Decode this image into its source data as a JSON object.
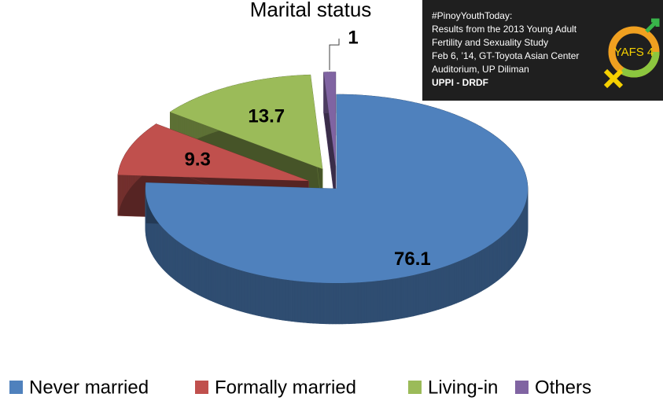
{
  "chart_data": {
    "type": "pie3d",
    "title": "Marital status",
    "categories": [
      "Never married",
      "Formally married",
      "Living-in",
      "Others"
    ],
    "values": [
      76.1,
      9.3,
      13.7,
      1.0
    ],
    "colors": [
      "#4f81bd",
      "#c0504d",
      "#9bbb59",
      "#8064a2"
    ],
    "legend": "bottom"
  },
  "overlay": {
    "lines": [
      "#PinoyYouthToday:",
      "Results from the 2013 Young Adult",
      "Fertility and Sexuality Study",
      "Feb 6, ’14, GT-Toyota Asian Center",
      "Auditorium, UP Diliman"
    ],
    "footer": "UPPI - DRDF",
    "logo": "YAFS 4"
  }
}
